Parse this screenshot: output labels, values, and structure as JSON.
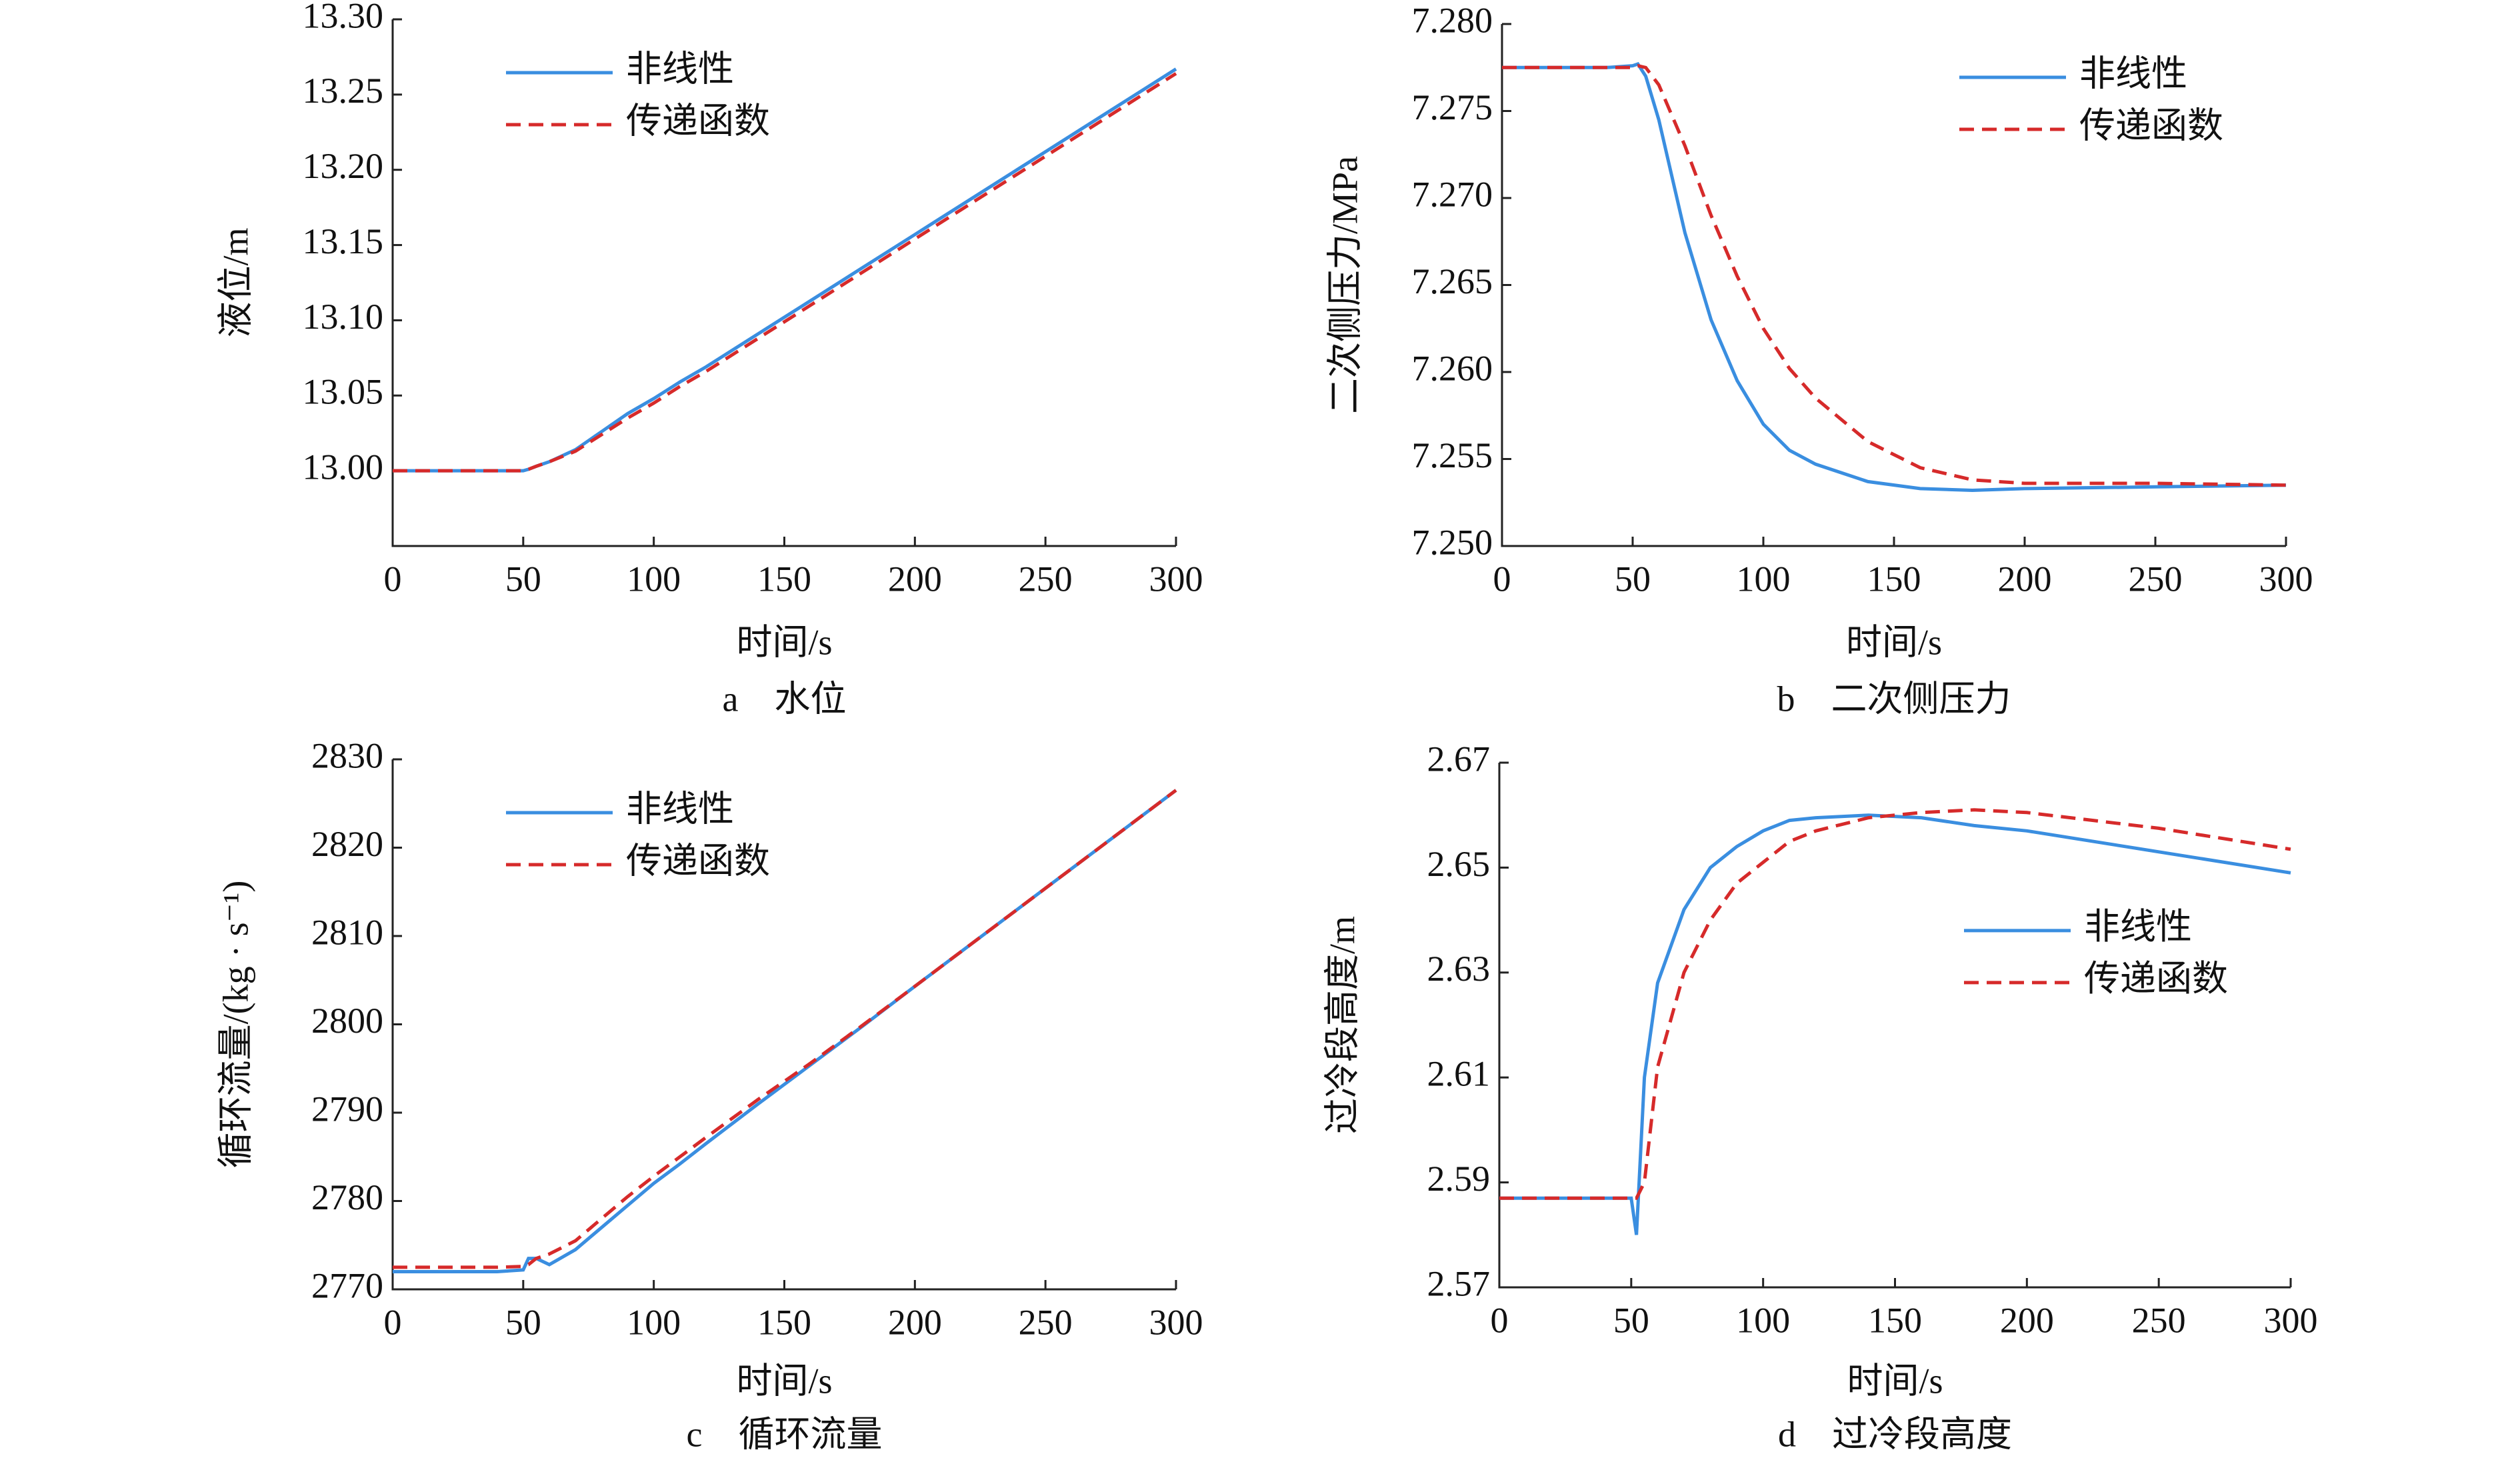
{
  "chart_data": [
    {
      "type": "line",
      "caption": "a　水位",
      "xlabel": "时间/s",
      "ylabel": "液位/m",
      "legend": "upper left",
      "x": [
        0,
        20,
        40,
        50,
        52,
        55,
        60,
        70,
        80,
        90,
        100,
        110,
        120,
        140,
        160,
        180,
        200,
        250,
        300
      ],
      "xlim": [
        0,
        300
      ],
      "xticks": [
        0,
        50,
        100,
        150,
        200,
        250,
        300
      ],
      "ylim": [
        12.95,
        13.3
      ],
      "yticks": [
        {
          "value": 13,
          "label": "13.00"
        },
        13.05,
        {
          "value": 13.1,
          "label": "13.10"
        },
        13.15,
        {
          "value": 13.2,
          "label": "13.20"
        },
        13.25,
        {
          "value": 13.3,
          "label": "13.30"
        }
      ],
      "series": [
        {
          "name": "非线性",
          "color": "#3a8ee0",
          "dash": false,
          "values": [
            13.0,
            13.0,
            13.0,
            13.0,
            13.001,
            13.003,
            13.006,
            13.014,
            13.026,
            13.038,
            13.048,
            13.059,
            13.069,
            13.091,
            13.113,
            13.135,
            13.157,
            13.212,
            13.267
          ]
        },
        {
          "name": "传递函数",
          "color": "#d62a2a",
          "dash": true,
          "values": [
            13.0,
            13.0,
            13.0,
            13.0,
            13.001,
            13.003,
            13.006,
            13.013,
            13.024,
            13.035,
            13.045,
            13.056,
            13.066,
            13.088,
            13.11,
            13.132,
            13.154,
            13.209,
            13.264
          ]
        }
      ]
    },
    {
      "type": "line",
      "caption": "b　二次侧压力",
      "xlabel": "时间/s",
      "ylabel": "二次侧压力/MPa",
      "legend": "upper right",
      "x": [
        0,
        20,
        40,
        50,
        52,
        55,
        60,
        70,
        80,
        90,
        100,
        110,
        120,
        140,
        160,
        180,
        200,
        250,
        300
      ],
      "xlim": [
        0,
        300
      ],
      "xticks": [
        0,
        50,
        100,
        150,
        200,
        250,
        300
      ],
      "ylim": [
        7.25,
        7.28
      ],
      "yticks": [
        {
          "value": 7.25,
          "label": "7.250"
        },
        7.255,
        {
          "value": 7.26,
          "label": "7.260"
        },
        7.265,
        {
          "value": 7.27,
          "label": "7.270"
        },
        7.275,
        {
          "value": 7.28,
          "label": "7.280"
        }
      ],
      "series": [
        {
          "name": "非线性",
          "color": "#3a8ee0",
          "dash": false,
          "values": [
            7.2775,
            7.2775,
            7.2775,
            7.2776,
            7.2777,
            7.277,
            7.2745,
            7.268,
            7.263,
            7.2595,
            7.257,
            7.2555,
            7.2547,
            7.2537,
            7.2533,
            7.2532,
            7.2533,
            7.2534,
            7.2535
          ]
        },
        {
          "name": "传递函数",
          "color": "#d62a2a",
          "dash": true,
          "values": [
            7.2775,
            7.2775,
            7.2775,
            7.2775,
            7.2776,
            7.2775,
            7.2765,
            7.273,
            7.269,
            7.2655,
            7.2625,
            7.2602,
            7.2585,
            7.256,
            7.2545,
            7.2538,
            7.2536,
            7.2536,
            7.2535
          ]
        }
      ]
    },
    {
      "type": "line",
      "caption": "c　循环流量",
      "xlabel": "时间/s",
      "ylabel": "循环流量/(kg · s⁻¹)",
      "legend": "upper left",
      "x": [
        0,
        20,
        40,
        50,
        52,
        55,
        60,
        70,
        80,
        90,
        100,
        110,
        120,
        140,
        160,
        180,
        200,
        250,
        300
      ],
      "xlim": [
        0,
        300
      ],
      "xticks": [
        0,
        50,
        100,
        150,
        200,
        250,
        300
      ],
      "ylim": [
        2770,
        2830
      ],
      "yticks": [
        2770,
        2780,
        2790,
        2800,
        2810,
        2820,
        2830
      ],
      "series": [
        {
          "name": "非线性",
          "color": "#3a8ee0",
          "dash": false,
          "values": [
            2772,
            2772,
            2772,
            2772.2,
            2773.5,
            2773.5,
            2772.8,
            2774.5,
            2777,
            2779.5,
            2782,
            2784.2,
            2786.5,
            2791,
            2795.4,
            2799.8,
            2804.3,
            2815.4,
            2826.5
          ]
        },
        {
          "name": "传递函数",
          "color": "#d62a2a",
          "dash": true,
          "values": [
            2772.5,
            2772.5,
            2772.5,
            2772.6,
            2772.8,
            2773.5,
            2774,
            2775.5,
            2778,
            2780.5,
            2782.8,
            2785,
            2787.2,
            2791.5,
            2795.6,
            2799.9,
            2804.3,
            2815.4,
            2826.5
          ]
        }
      ]
    },
    {
      "type": "line",
      "caption": "d　过冷段高度",
      "xlabel": "时间/s",
      "ylabel": "过冷段高度/m",
      "legend": "center right",
      "x": [
        0,
        20,
        40,
        50,
        52,
        55,
        60,
        70,
        80,
        90,
        100,
        110,
        120,
        140,
        160,
        180,
        200,
        250,
        300
      ],
      "xlim": [
        0,
        300
      ],
      "xticks": [
        0,
        50,
        100,
        150,
        200,
        250,
        300
      ],
      "ylim": [
        2.57,
        2.67
      ],
      "yticks": [
        2.57,
        2.59,
        2.61,
        2.63,
        2.65,
        2.67
      ],
      "series": [
        {
          "name": "非线性",
          "color": "#3a8ee0",
          "dash": false,
          "values": [
            2.587,
            2.587,
            2.587,
            2.587,
            2.58,
            2.61,
            2.628,
            2.642,
            2.65,
            2.654,
            2.657,
            2.659,
            2.6595,
            2.66,
            2.6595,
            2.658,
            2.657,
            2.653,
            2.649
          ]
        },
        {
          "name": "传递函数",
          "color": "#d62a2a",
          "dash": true,
          "values": [
            2.587,
            2.587,
            2.587,
            2.587,
            2.587,
            2.59,
            2.612,
            2.63,
            2.64,
            2.647,
            2.651,
            2.655,
            2.657,
            2.6595,
            2.6605,
            2.661,
            2.6605,
            2.6575,
            2.6535
          ]
        }
      ]
    }
  ]
}
